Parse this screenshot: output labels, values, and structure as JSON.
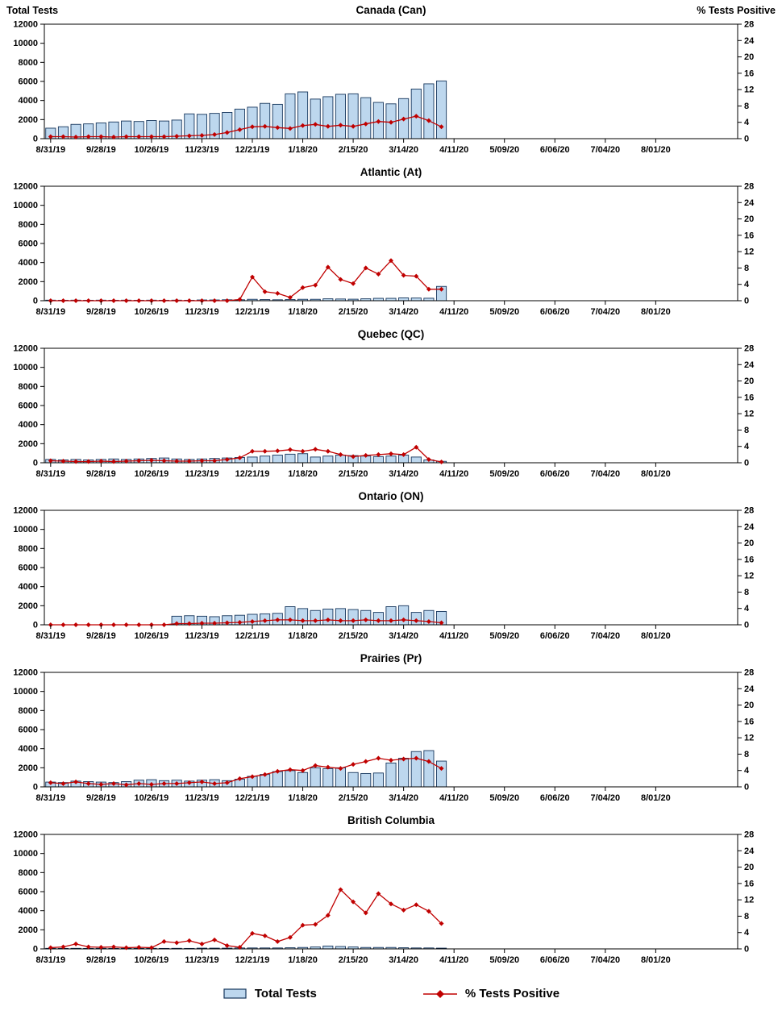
{
  "header": {
    "left_axis_title": "Total Tests",
    "right_axis_title": "% Tests Positive"
  },
  "legend": {
    "items": [
      {
        "label": "Total Tests",
        "type": "bar"
      },
      {
        "label": "% Tests Positive",
        "type": "line"
      }
    ]
  },
  "axes": {
    "x_tick_labels": [
      "8/31/19",
      "9/28/19",
      "10/26/19",
      "11/23/19",
      "12/21/19",
      "1/18/20",
      "2/15/20",
      "3/14/20",
      "4/11/20",
      "5/09/20",
      "6/06/20",
      "7/04/20",
      "8/01/20"
    ],
    "left_tick_values": [
      0,
      2000,
      4000,
      6000,
      8000,
      10000,
      12000
    ],
    "right_tick_values": [
      0,
      4,
      8,
      12,
      16,
      20,
      24,
      28
    ],
    "left_max": 12000,
    "right_max": 28,
    "weeks_between_ticks": 4,
    "total_weeks": 55
  },
  "colors": {
    "bar_fill": "#BDD7EE",
    "bar_stroke": "#16365C",
    "line": "#C00000",
    "axis": "#000000"
  },
  "chart_data": [
    {
      "type": "bar+line",
      "title": "Canada (Can)",
      "bar_series": "Total Tests",
      "line_series": "% Tests Positive",
      "x_start": "8/31/19",
      "x_interval": "weekly",
      "total_tests": [
        1100,
        1250,
        1500,
        1550,
        1650,
        1750,
        1850,
        1800,
        1900,
        1850,
        1950,
        2600,
        2550,
        2650,
        2750,
        3100,
        3300,
        3700,
        3600,
        4700,
        4900,
        4150,
        4400,
        4650,
        4700,
        4300,
        3800,
        3650,
        4200,
        5200,
        5750,
        6050
      ],
      "pct_positive": [
        0.5,
        0.5,
        0.4,
        0.5,
        0.5,
        0.4,
        0.5,
        0.5,
        0.5,
        0.5,
        0.6,
        0.7,
        0.8,
        1.0,
        1.5,
        2.2,
        2.9,
        3.0,
        2.7,
        2.5,
        3.2,
        3.5,
        3.0,
        3.3,
        3.0,
        3.6,
        4.2,
        4.0,
        4.8,
        5.5,
        4.4,
        2.9
      ]
    },
    {
      "type": "bar+line",
      "title": "Atlantic (At)",
      "bar_series": "Total Tests",
      "line_series": "% Tests Positive",
      "x_start": "8/31/19",
      "x_interval": "weekly",
      "total_tests": [
        60,
        50,
        60,
        50,
        60,
        50,
        60,
        50,
        60,
        50,
        60,
        50,
        80,
        80,
        100,
        100,
        150,
        120,
        100,
        120,
        150,
        150,
        200,
        180,
        160,
        200,
        250,
        250,
        300,
        280,
        260,
        1500
      ],
      "pct_positive": [
        0,
        0,
        0,
        0,
        0,
        0,
        0,
        0,
        0,
        0,
        0,
        0,
        0,
        0,
        0,
        0.3,
        5.8,
        2.2,
        1.8,
        0.8,
        3.2,
        3.8,
        8.2,
        5.2,
        4.2,
        8.0,
        6.5,
        9.8,
        6.2,
        6.0,
        2.8,
        2.8
      ]
    },
    {
      "type": "bar+line",
      "title": "Quebec (QC)",
      "bar_series": "Total Tests",
      "line_series": "% Tests Positive",
      "x_start": "8/31/19",
      "x_interval": "weekly",
      "total_tests": [
        350,
        300,
        350,
        300,
        350,
        400,
        350,
        400,
        450,
        500,
        400,
        350,
        400,
        450,
        500,
        550,
        600,
        700,
        800,
        900,
        950,
        600,
        700,
        800,
        750,
        700,
        650,
        700,
        800,
        600,
        300,
        150
      ],
      "pct_positive": [
        0.5,
        0.4,
        0.3,
        0.3,
        0.4,
        0.3,
        0.4,
        0.5,
        0.6,
        0.5,
        0.4,
        0.4,
        0.5,
        0.5,
        0.8,
        1.2,
        2.8,
        2.8,
        2.9,
        3.2,
        2.8,
        3.3,
        2.8,
        2.0,
        1.5,
        1.8,
        2.0,
        2.2,
        2.0,
        3.8,
        0.8,
        0.2
      ]
    },
    {
      "type": "bar+line",
      "title": "Ontario (ON)",
      "bar_series": "Total Tests",
      "line_series": "% Tests Positive",
      "x_start": "8/31/19",
      "x_interval": "weekly",
      "total_tests": [
        0,
        0,
        0,
        0,
        0,
        0,
        0,
        0,
        0,
        0,
        900,
        950,
        900,
        850,
        950,
        1000,
        1100,
        1150,
        1200,
        1900,
        1700,
        1500,
        1650,
        1700,
        1600,
        1500,
        1300,
        1900,
        2000,
        1300,
        1500,
        1400
      ],
      "pct_positive": [
        0,
        0,
        0,
        0,
        0,
        0,
        0,
        0,
        0,
        0,
        0.3,
        0.3,
        0.4,
        0.4,
        0.5,
        0.6,
        0.8,
        1.0,
        1.2,
        1.2,
        1.0,
        1.0,
        1.2,
        1.0,
        1.0,
        1.2,
        1.0,
        1.0,
        1.2,
        1.0,
        0.8,
        0.5
      ]
    },
    {
      "type": "bar+line",
      "title": "Prairies (Pr)",
      "bar_series": "Total Tests",
      "line_series": "% Tests Positive",
      "x_start": "8/31/19",
      "x_interval": "weekly",
      "total_tests": [
        500,
        450,
        600,
        550,
        500,
        450,
        550,
        700,
        750,
        650,
        700,
        600,
        700,
        750,
        650,
        800,
        1100,
        1300,
        1600,
        1700,
        1500,
        2000,
        1900,
        2000,
        1500,
        1400,
        1450,
        2500,
        3000,
        3700,
        3800,
        2700
      ],
      "pct_positive": [
        1.0,
        0.8,
        1.2,
        0.8,
        0.6,
        0.8,
        0.5,
        0.8,
        0.6,
        0.8,
        0.8,
        1.0,
        1.2,
        0.8,
        1.0,
        2.0,
        2.5,
        3.0,
        3.8,
        4.2,
        4.0,
        5.2,
        4.8,
        4.5,
        5.5,
        6.2,
        7.0,
        6.5,
        6.8,
        7.0,
        6.2,
        4.5
      ]
    },
    {
      "type": "bar+line",
      "title": "British Columbia",
      "bar_series": "Total Tests",
      "line_series": "% Tests Positive",
      "x_start": "8/31/19",
      "x_interval": "weekly",
      "total_tests": [
        60,
        50,
        60,
        50,
        60,
        50,
        60,
        50,
        60,
        50,
        60,
        50,
        80,
        80,
        80,
        100,
        100,
        100,
        100,
        120,
        150,
        200,
        300,
        250,
        200,
        150,
        150,
        150,
        120,
        100,
        100,
        80
      ],
      "pct_positive": [
        0.3,
        0.5,
        1.2,
        0.5,
        0.4,
        0.5,
        0.3,
        0.4,
        0.3,
        1.8,
        1.5,
        2.0,
        1.2,
        2.2,
        0.8,
        0.4,
        3.8,
        3.2,
        1.8,
        2.8,
        5.8,
        6.0,
        8.2,
        14.5,
        11.5,
        8.8,
        13.5,
        11.0,
        9.5,
        10.8,
        9.2,
        6.2
      ]
    }
  ]
}
